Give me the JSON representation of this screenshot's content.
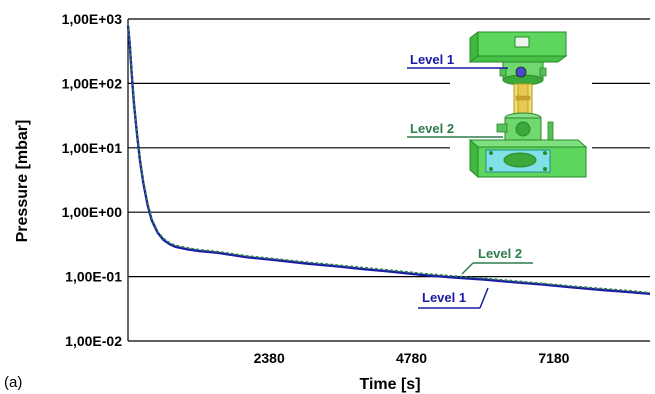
{
  "panel_label": "(a)",
  "chart_data": {
    "type": "line",
    "xlabel": "Time [s]",
    "ylabel": "Pressure [mbar]",
    "x_scale": "linear",
    "y_scale": "log",
    "xlim": [
      0,
      8800
    ],
    "ylim": [
      0.01,
      1000
    ],
    "x_tick_values": [
      2380,
      4780,
      7180
    ],
    "x_tick_labels": [
      "2380",
      "4780",
      "7180"
    ],
    "y_tick_values": [
      0.01,
      0.1,
      1,
      10,
      100,
      1000
    ],
    "y_tick_labels": [
      "1,00E-02",
      "1,00E-01",
      "1,00E+00",
      "1,00E+01",
      "1,00E+02",
      "1,00E+03"
    ],
    "grid": "horizontal",
    "colors": {
      "level1": "#1a1aa6",
      "level2": "#2e7d4f",
      "grid": "#000000"
    },
    "series": [
      {
        "name": "Level 1",
        "x": [
          0,
          30,
          60,
          100,
          150,
          200,
          260,
          330,
          400,
          500,
          600,
          700,
          800,
          1000,
          1200,
          1500,
          2000,
          2500,
          3000,
          3500,
          4000,
          4500,
          5000,
          5500,
          6000,
          6500,
          7000,
          7500,
          8000,
          8500,
          8800
        ],
        "y": [
          800,
          400,
          150,
          50,
          17,
          6.5,
          2.8,
          1.3,
          0.75,
          0.48,
          0.37,
          0.32,
          0.29,
          0.265,
          0.25,
          0.235,
          0.2,
          0.18,
          0.16,
          0.145,
          0.13,
          0.118,
          0.105,
          0.097,
          0.09,
          0.082,
          0.075,
          0.068,
          0.062,
          0.057,
          0.054
        ]
      },
      {
        "name": "Level 2",
        "x": [
          0,
          30,
          60,
          100,
          150,
          200,
          260,
          330,
          400,
          500,
          600,
          700,
          800,
          1000,
          1200,
          1500,
          2000,
          2500,
          3000,
          3500,
          4000,
          4500,
          5000,
          5500,
          6000,
          6500,
          7000,
          7500,
          8000,
          8500,
          8800
        ],
        "y": [
          850,
          420,
          160,
          53,
          18,
          7,
          3,
          1.4,
          0.8,
          0.5,
          0.39,
          0.335,
          0.305,
          0.28,
          0.262,
          0.245,
          0.21,
          0.188,
          0.168,
          0.152,
          0.137,
          0.124,
          0.111,
          0.102,
          0.094,
          0.086,
          0.078,
          0.071,
          0.065,
          0.06,
          0.056
        ]
      }
    ],
    "annotations": [
      {
        "text": "Level 1",
        "color": "#1a1aa6"
      },
      {
        "text": "Level 2",
        "color": "#2e7d4f"
      },
      {
        "text": "Level 2",
        "color": "#2e7d4f"
      },
      {
        "text": "Level 1",
        "color": "#1a1aa6"
      }
    ]
  }
}
